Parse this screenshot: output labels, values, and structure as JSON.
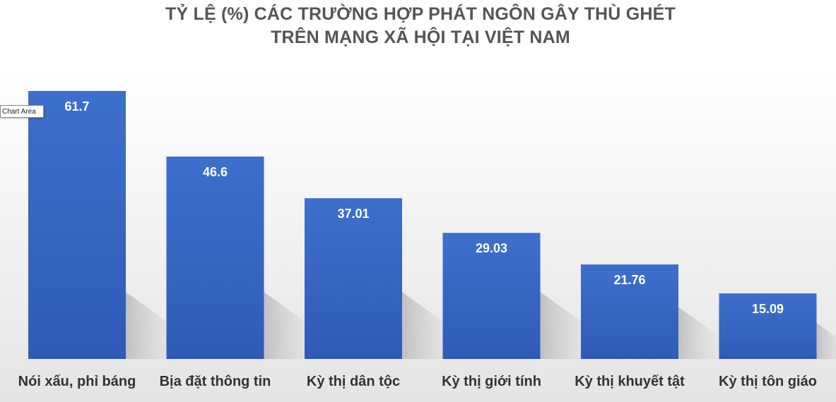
{
  "chart_data": {
    "type": "bar",
    "title_lines": [
      "TỶ LỆ (%) CÁC TRƯỜNG HỢP PHÁT NGÔN GÂY THÙ GHÉT",
      "TRÊN MẠNG XÃ HỘI TẠI VIỆT NAM"
    ],
    "categories": [
      "Nói xấu, phỉ báng",
      "Bịa đặt thông tin",
      "Kỳ thị dân tộc",
      "Kỳ thị giới tính",
      "Kỳ thị khuyết tật",
      "Kỳ thị tôn giáo"
    ],
    "values": [
      61.7,
      46.6,
      37.01,
      29.03,
      21.76,
      15.09
    ],
    "data_labels": [
      "61.7",
      "46.6",
      "37.01",
      "29.03",
      "21.76",
      "15.09"
    ],
    "ylim": [
      0,
      61.7
    ],
    "grid": false,
    "legend": "none",
    "bar_color": "#3b6cc8",
    "label_color": "#ffffff"
  },
  "tooltip": {
    "text": "Chart Area"
  }
}
